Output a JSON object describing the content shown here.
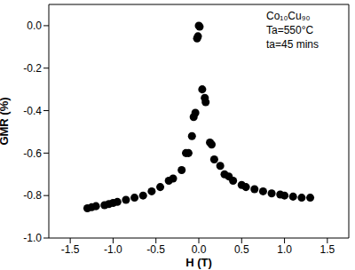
{
  "chart_data": {
    "type": "scatter",
    "x_label": "H (T)",
    "y_label": "GMR (%)",
    "annotations": [
      "Co₁₀Cu₉₀",
      "Ta=550°C",
      "ta=45 mins"
    ],
    "color": "#000000",
    "marker": "circle",
    "grid": false,
    "xlim": [
      -1.75,
      1.75
    ],
    "ylim": [
      -1.0,
      0.1
    ],
    "xticks": [
      -1.5,
      {
        "value": -1.0,
        "label": "-1.0"
      },
      -0.5,
      {
        "value": 0,
        "label": "0.0"
      },
      0.5,
      {
        "value": 1.0,
        "label": "1.0"
      },
      1.5
    ],
    "yticks": [
      {
        "value": -1.0,
        "label": "-1.0"
      },
      -0.8,
      -0.6,
      -0.4,
      -0.2,
      {
        "value": 0,
        "label": "0.0"
      }
    ],
    "x": [
      -1.3,
      -1.25,
      -1.2,
      -1.1,
      -1.05,
      -1.0,
      -0.95,
      -0.85,
      -0.75,
      -0.65,
      -0.55,
      -0.45,
      -0.35,
      -0.3,
      -0.2,
      -0.15,
      -0.12,
      -0.08,
      -0.06,
      -0.04,
      -0.02,
      -0.01,
      0.0,
      0.01,
      0.04,
      0.07,
      0.08,
      0.13,
      0.15,
      0.18,
      0.25,
      0.3,
      0.35,
      0.4,
      0.5,
      0.55,
      0.65,
      0.75,
      0.85,
      0.95,
      1.0,
      1.1,
      1.2,
      1.3
    ],
    "values": [
      -0.86,
      -0.855,
      -0.85,
      -0.845,
      -0.84,
      -0.835,
      -0.83,
      -0.82,
      -0.81,
      -0.8,
      -0.78,
      -0.76,
      -0.73,
      -0.72,
      -0.68,
      -0.6,
      -0.6,
      -0.52,
      -0.43,
      -0.41,
      -0.06,
      -0.05,
      0.0,
      -0.005,
      -0.3,
      -0.34,
      -0.36,
      -0.55,
      -0.56,
      -0.63,
      -0.66,
      -0.7,
      -0.71,
      -0.73,
      -0.75,
      -0.76,
      -0.77,
      -0.78,
      -0.79,
      -0.795,
      -0.8,
      -0.805,
      -0.81,
      -0.81
    ]
  }
}
